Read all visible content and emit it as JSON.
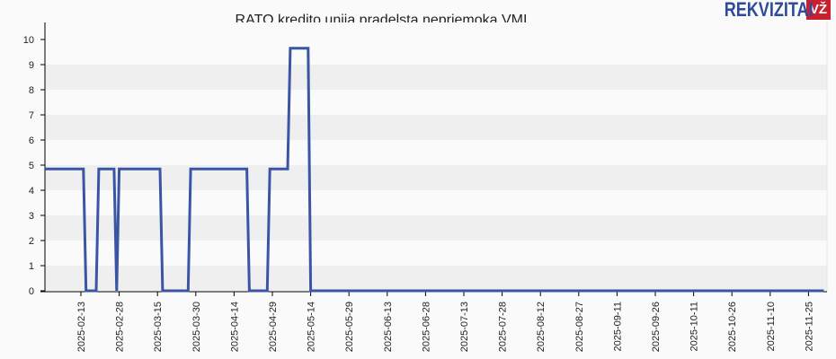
{
  "header": {
    "title": "RATO kredito unija pradelsta nepriemoka VMI",
    "logo_text": "REKVIZITAI",
    "logo_badge": "VŽ"
  },
  "colors": {
    "line": "#3a55a4",
    "band_dark": "#efefef",
    "band_light": "#fafafa",
    "logo_blue": "#2e4a9a",
    "logo_red": "#c8202f"
  },
  "chart_data": {
    "type": "line",
    "title": "RATO kredito unija pradelsta nepriemoka VMI",
    "xlabel": "",
    "ylabel": "",
    "ylim": [
      0,
      10
    ],
    "yticks": [
      0,
      1,
      2,
      3,
      4,
      5,
      6,
      7,
      8,
      9,
      10
    ],
    "xticks": [
      "2025-02-13",
      "2025-02-28",
      "2025-03-15",
      "2025-03-30",
      "2025-04-14",
      "2025-04-29",
      "2025-05-14",
      "2025-05-29",
      "2025-06-13",
      "2025-06-28",
      "2025-07-13",
      "2025-07-28",
      "2025-08-12",
      "2025-08-27",
      "2025-09-11",
      "2025-09-26",
      "2025-10-11",
      "2025-10-26",
      "2025-11-10",
      "2025-11-25"
    ],
    "grid": "horizontal bands",
    "series": [
      {
        "name": "Pradelsta nepriemoka VMI",
        "points": [
          {
            "x": "2025-01-29",
            "y": 4.85
          },
          {
            "x": "2025-02-14",
            "y": 4.85
          },
          {
            "x": "2025-02-15",
            "y": 0
          },
          {
            "x": "2025-02-19",
            "y": 0
          },
          {
            "x": "2025-02-20",
            "y": 4.85
          },
          {
            "x": "2025-02-26",
            "y": 4.85
          },
          {
            "x": "2025-02-27",
            "y": 0
          },
          {
            "x": "2025-02-28",
            "y": 4.85
          },
          {
            "x": "2025-03-16",
            "y": 4.85
          },
          {
            "x": "2025-03-17",
            "y": 0
          },
          {
            "x": "2025-03-27",
            "y": 0
          },
          {
            "x": "2025-03-28",
            "y": 4.85
          },
          {
            "x": "2025-04-19",
            "y": 4.85
          },
          {
            "x": "2025-04-20",
            "y": 0
          },
          {
            "x": "2025-04-27",
            "y": 0
          },
          {
            "x": "2025-04-28",
            "y": 4.85
          },
          {
            "x": "2025-05-05",
            "y": 4.85
          },
          {
            "x": "2025-05-06",
            "y": 9.65
          },
          {
            "x": "2025-05-13",
            "y": 9.65
          },
          {
            "x": "2025-05-14",
            "y": 0
          },
          {
            "x": "2025-12-01",
            "y": 0
          }
        ]
      }
    ]
  }
}
